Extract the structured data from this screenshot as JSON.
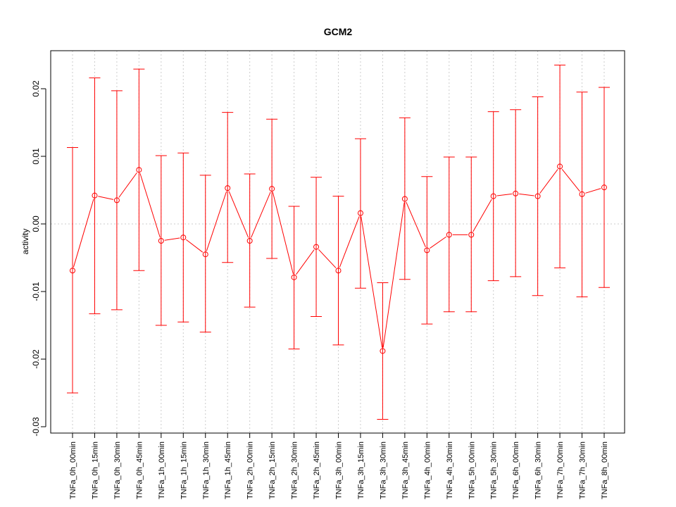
{
  "chart_data": {
    "type": "line",
    "title": "GCM2",
    "xlabel": "",
    "ylabel": "activity",
    "ylim": [
      -0.031,
      0.0256
    ],
    "yticks": [
      -0.03,
      -0.02,
      -0.01,
      0.0,
      0.01,
      0.02
    ],
    "ytick_labels": [
      "-0.03",
      "-0.02",
      "-0.01",
      "0.00",
      "0.01",
      "0.02"
    ],
    "grid": "dotted vertical at each category, horizontal at 0",
    "color": "#ff0000",
    "categories": [
      "TNFa_0h_00min",
      "TNFa_0h_15min",
      "TNFa_0h_30min",
      "TNFa_0h_45min",
      "TNFa_1h_00min",
      "TNFa_1h_15min",
      "TNFa_1h_30min",
      "TNFa_1h_45min",
      "TNFa_2h_00min",
      "TNFa_2h_15min",
      "TNFa_2h_30min",
      "TNFa_2h_45min",
      "TNFa_3h_00min",
      "TNFa_3h_15min",
      "TNFa_3h_30min",
      "TNFa_3h_45min",
      "TNFa_4h_00min",
      "TNFa_4h_30min",
      "TNFa_5h_00min",
      "TNFa_5h_30min",
      "TNFa_6h_00min",
      "TNFa_6h_30min",
      "TNFa_7h_00min",
      "TNFa_7h_30min",
      "TNFa_8h_00min"
    ],
    "values": [
      -0.0069,
      0.0042,
      0.0035,
      0.008,
      -0.0025,
      -0.002,
      -0.0045,
      0.0053,
      -0.0025,
      0.0052,
      -0.0079,
      -0.0034,
      -0.0069,
      0.0016,
      -0.0188,
      0.0037,
      -0.0039,
      -0.0016,
      -0.0016,
      0.0041,
      0.0045,
      0.0041,
      0.0085,
      0.0044,
      0.0054
    ],
    "upper": [
      0.0113,
      0.0216,
      0.0197,
      0.0229,
      0.0101,
      0.0105,
      0.0072,
      0.0165,
      0.0074,
      0.0155,
      0.0026,
      0.0069,
      0.0041,
      0.0126,
      -0.0087,
      0.0157,
      0.007,
      0.0099,
      0.0099,
      0.0166,
      0.0169,
      0.0188,
      0.0235,
      0.0195,
      0.0202
    ],
    "lower": [
      -0.025,
      -0.0133,
      -0.0127,
      -0.0069,
      -0.015,
      -0.0145,
      -0.016,
      -0.0057,
      -0.0123,
      -0.0051,
      -0.0185,
      -0.0137,
      -0.0179,
      -0.0095,
      -0.0289,
      -0.0082,
      -0.0148,
      -0.013,
      -0.013,
      -0.0084,
      -0.0078,
      -0.0106,
      -0.0065,
      -0.0108,
      -0.0094
    ]
  }
}
